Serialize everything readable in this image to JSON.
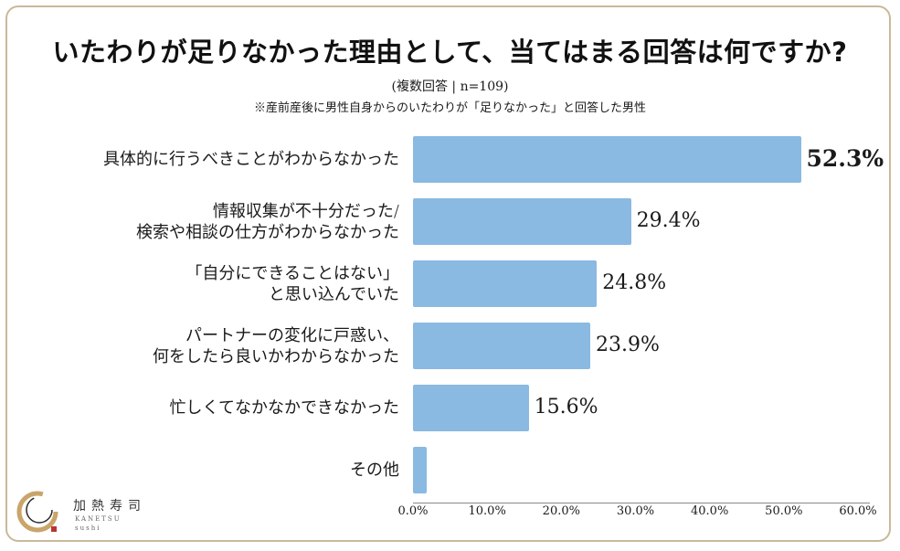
{
  "chart_data": {
    "type": "bar",
    "orientation": "horizontal",
    "title": "いたわりが足りなかった理由として、当てはまる回答は何ですか?",
    "subtitle_lines": [
      "(複数回答 | n=109)",
      "※産前産後に男性自身からのいたわりが「足りなかった」と回答した男性"
    ],
    "categories": [
      [
        "具体的に行うべきことがわからなかった"
      ],
      [
        "情報収集が不十分だった/",
        "検索や相談の仕方がわからなかった"
      ],
      [
        "「自分にできることはない」",
        "と思い込んでいた"
      ],
      [
        "パートナーの変化に戸惑い、",
        "何をしたら良いかわからなかった"
      ],
      [
        "忙しくてなかなかできなかった"
      ],
      [
        "その他"
      ]
    ],
    "values": [
      52.3,
      29.4,
      24.8,
      23.9,
      15.6,
      1.8
    ],
    "value_labels": [
      "52.3%",
      "29.4%",
      "24.8%",
      "23.9%",
      "15.6%",
      ""
    ],
    "xlim": [
      0,
      60
    ],
    "xticks": [
      "0.0%",
      "10.0%",
      "20.0%",
      "30.0%",
      "40.0%",
      "50.0%",
      "60.0%"
    ],
    "bar_color": "#8ab9e2"
  },
  "logo": {
    "name": "加熱寿司",
    "sub1": "KANETSU",
    "sub2": "sushi"
  }
}
